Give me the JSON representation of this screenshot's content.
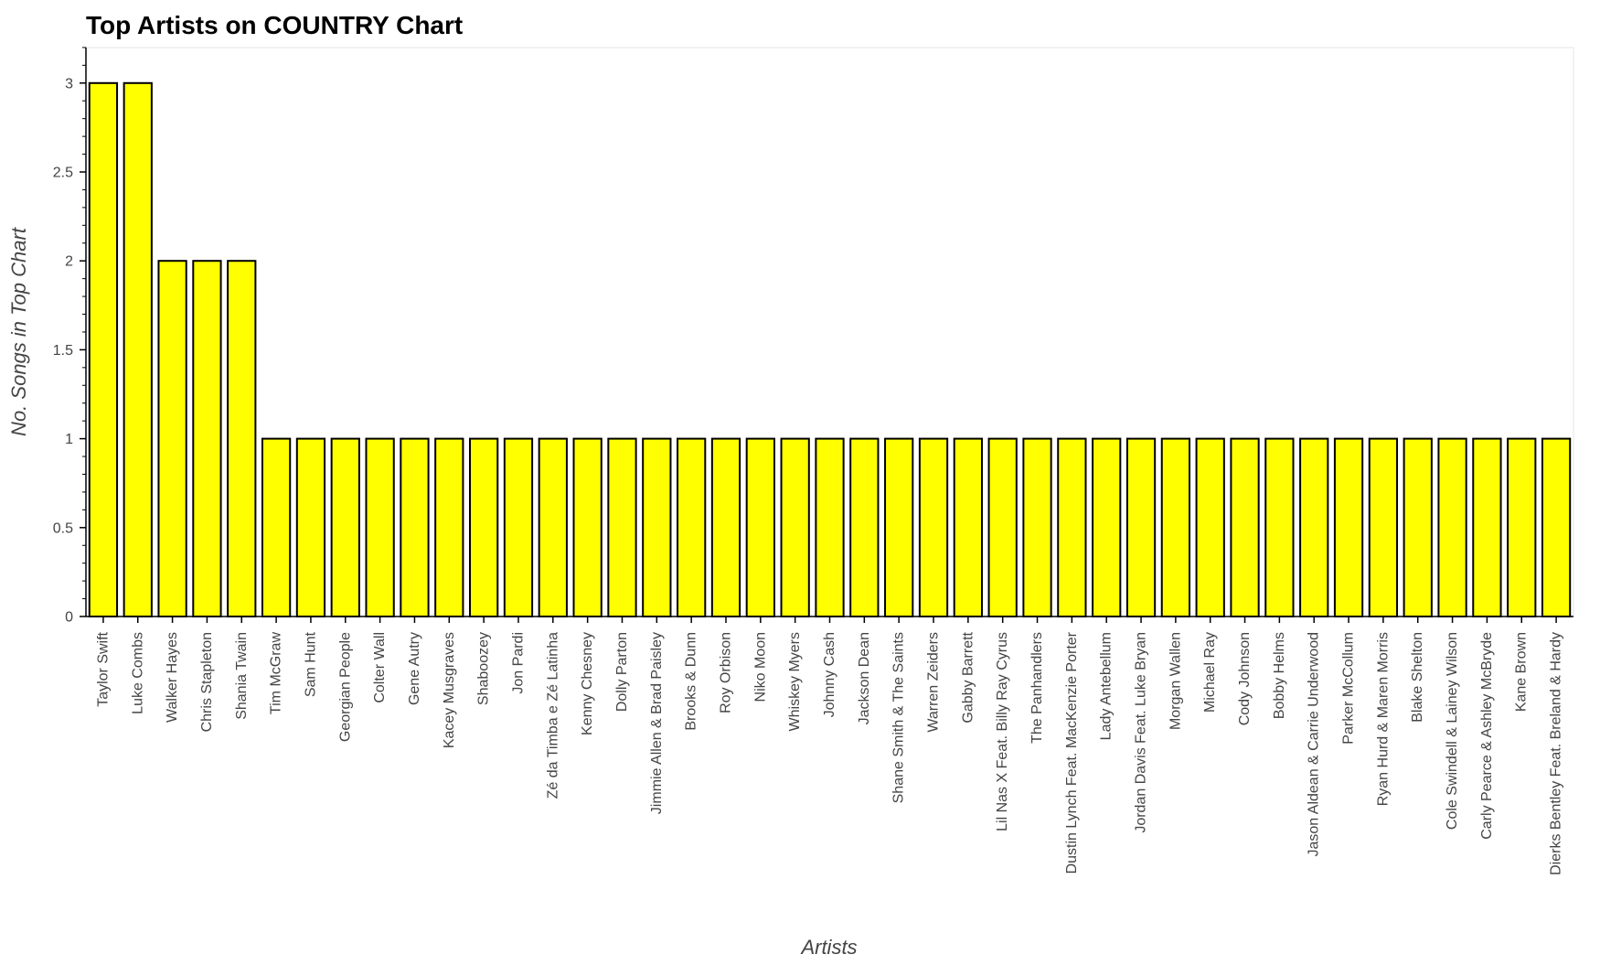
{
  "chart_data": {
    "type": "bar",
    "title": "Top Artists on COUNTRY Chart",
    "xlabel": "Artists",
    "ylabel": "No. Songs in Top Chart",
    "ylim": [
      0,
      3.2
    ],
    "y_ticks": [
      "0",
      "0.5",
      "1",
      "1.5",
      "2",
      "2.5",
      "3"
    ],
    "grid": false,
    "legend": "none",
    "bar_color": "#ffff00",
    "bar_outline": "#000000",
    "categories": [
      "Taylor Swift",
      "Luke Combs",
      "Walker Hayes",
      "Chris Stapleton",
      "Shania Twain",
      "Tim McGraw",
      "Sam Hunt",
      "Georgian People",
      "Colter Wall",
      "Gene Autry",
      "Kacey Musgraves",
      "Shaboozey",
      "Jon Pardi",
      "Zé da Timba e Zé Latinha",
      "Kenny Chesney",
      "Dolly Parton",
      "Jimmie Allen & Brad Paisley",
      "Brooks & Dunn",
      "Roy Orbison",
      "Niko Moon",
      "Whiskey Myers",
      "Johnny Cash",
      "Jackson Dean",
      "Shane Smith & The Saints",
      "Warren Zeiders",
      "Gabby Barrett",
      "Lil Nas X Feat. Billy Ray Cyrus",
      "The Panhandlers",
      "Dustin Lynch Feat. MacKenzie Porter",
      "Lady Antebellum",
      "Jordan Davis Feat. Luke Bryan",
      "Morgan Wallen",
      "Michael Ray",
      "Cody Johnson",
      "Bobby Helms",
      "Jason Aldean & Carrie Underwood",
      "Parker McCollum",
      "Ryan Hurd & Maren Morris",
      "Blake Shelton",
      "Cole Swindell & Lainey Wilson",
      "Carly Pearce & Ashley McBryde",
      "Kane Brown",
      "Dierks Bentley Feat. Breland & Hardy"
    ],
    "values": [
      3,
      3,
      2,
      2,
      2,
      1,
      1,
      1,
      1,
      1,
      1,
      1,
      1,
      1,
      1,
      1,
      1,
      1,
      1,
      1,
      1,
      1,
      1,
      1,
      1,
      1,
      1,
      1,
      1,
      1,
      1,
      1,
      1,
      1,
      1,
      1,
      1,
      1,
      1,
      1,
      1,
      1,
      1
    ]
  }
}
